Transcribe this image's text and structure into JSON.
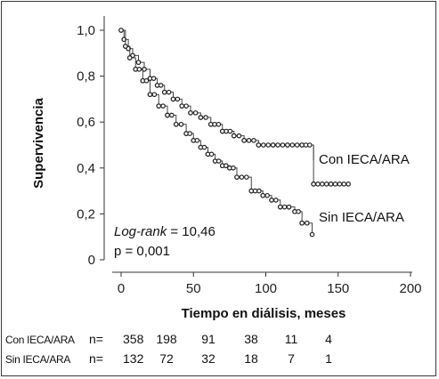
{
  "chart_data": {
    "type": "line",
    "subtype": "kaplan-meier",
    "title": "",
    "xlabel": "Tiempo en diálisis, meses",
    "ylabel": "Supervivencia",
    "xlim": [
      0,
      200
    ],
    "ylim": [
      0,
      1.0
    ],
    "x_ticks": [
      "0",
      "50",
      "100",
      "150",
      "200"
    ],
    "y_ticks": [
      "0",
      "0,2",
      "0,4",
      "0,6",
      "0,8",
      "1,0"
    ],
    "grid": false,
    "series": [
      {
        "name": "Con IECA/ARA",
        "x": [
          0,
          2,
          5,
          8,
          12,
          16,
          20,
          25,
          30,
          36,
          42,
          48,
          55,
          62,
          70,
          78,
          85,
          95,
          105,
          115,
          125,
          133,
          145,
          157
        ],
        "y": [
          1.0,
          0.96,
          0.92,
          0.89,
          0.86,
          0.83,
          0.79,
          0.76,
          0.73,
          0.7,
          0.67,
          0.64,
          0.62,
          0.59,
          0.56,
          0.54,
          0.52,
          0.5,
          0.5,
          0.5,
          0.5,
          0.33,
          0.33,
          0.33
        ]
      },
      {
        "name": "Sin IECA/ARA",
        "x": [
          0,
          3,
          6,
          10,
          15,
          20,
          26,
          32,
          38,
          45,
          50,
          55,
          60,
          65,
          70,
          75,
          80,
          90,
          98,
          104,
          110,
          116,
          120,
          125,
          132
        ],
        "y": [
          1.0,
          0.93,
          0.88,
          0.83,
          0.78,
          0.72,
          0.67,
          0.63,
          0.59,
          0.55,
          0.52,
          0.49,
          0.46,
          0.43,
          0.41,
          0.4,
          0.36,
          0.3,
          0.28,
          0.26,
          0.23,
          0.23,
          0.21,
          0.16,
          0.11
        ]
      }
    ],
    "annotations": {
      "logrank_label": "Log-rank",
      "logrank_value": " = 10,46",
      "p_value": "p = 0,001"
    },
    "risk_table": {
      "rows": [
        {
          "label": "Con IECA/ARA",
          "n_label": "n=",
          "values": [
            "358",
            "198",
            "91",
            "38",
            "11",
            "4"
          ]
        },
        {
          "label": "Sin IECA/ARA",
          "n_label": "n=",
          "values": [
            "132",
            "72",
            "32",
            "18",
            "7",
            "1"
          ]
        }
      ]
    }
  }
}
